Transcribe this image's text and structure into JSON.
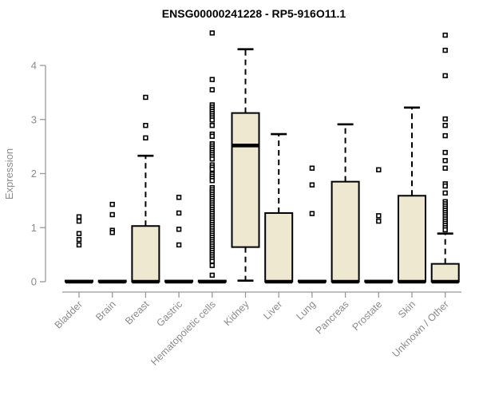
{
  "chart_data": {
    "type": "boxplot",
    "title": "ENSG00000241228 - RP5-916O11.1",
    "ylabel": "Expression",
    "xlabel": "",
    "ylim": [
      0,
      4.65
    ],
    "y_ticks": [
      0,
      1,
      2,
      3,
      4
    ],
    "grid": "off",
    "colors": {
      "box_fill": "#ede8cf",
      "box_stroke": "#000000",
      "axis": "#999999",
      "tick_text": "#8b8b8b",
      "title_text": "#000000",
      "outlier_fill": "#ffffff"
    },
    "categories": [
      "Bladder",
      "Brain",
      "Breast",
      "Gastric",
      "Hematopoietic cells",
      "Kidney",
      "Liver",
      "Lung",
      "Pancreas",
      "Prostate",
      "Skin",
      "Unknown / Other"
    ],
    "boxes": [
      {
        "label": "Bladder",
        "median": 0,
        "q1": 0,
        "q3": 0.02,
        "whisker_low": 0,
        "whisker_high": 0.02,
        "outliers": [
          1.2,
          1.12,
          0.89,
          0.78,
          0.68
        ]
      },
      {
        "label": "Brain",
        "median": 0,
        "q1": 0,
        "q3": 0.02,
        "whisker_low": 0,
        "whisker_high": 0.02,
        "outliers": [
          1.43,
          1.24,
          0.95,
          0.91
        ]
      },
      {
        "label": "Breast",
        "median": 0,
        "q1": 0,
        "q3": 1.03,
        "whisker_low": 0,
        "whisker_high": 2.33,
        "outliers": [
          3.41,
          2.89,
          2.66
        ]
      },
      {
        "label": "Gastric",
        "median": 0,
        "q1": 0,
        "q3": 0.02,
        "whisker_low": 0,
        "whisker_high": 0.02,
        "outliers": [
          1.56,
          1.27,
          0.97,
          0.68
        ]
      },
      {
        "label": "Hematopoietic cells",
        "median": 0,
        "q1": 0,
        "q3": 0.02,
        "whisker_low": 0,
        "whisker_high": 0.02,
        "outliers": [
          4.6,
          3.74,
          3.55,
          3.27,
          3.23,
          3.19,
          3.15,
          3.11,
          3.07,
          3.03,
          2.99,
          2.89,
          2.73,
          2.69,
          2.55,
          2.51,
          2.47,
          2.43,
          2.39,
          2.35,
          2.31,
          2.27,
          2.16,
          2.12,
          2.08,
          1.99,
          1.95,
          1.91,
          1.87,
          1.74,
          1.7,
          1.66,
          1.62,
          1.58,
          1.54,
          1.5,
          1.46,
          1.42,
          1.38,
          1.34,
          1.3,
          1.26,
          1.22,
          1.18,
          1.14,
          1.1,
          1.06,
          1.02,
          0.98,
          0.94,
          0.9,
          0.86,
          0.82,
          0.78,
          0.74,
          0.7,
          0.66,
          0.62,
          0.58,
          0.54,
          0.5,
          0.46,
          0.42,
          0.38,
          0.3,
          0.12
        ]
      },
      {
        "label": "Kidney",
        "median": 2.52,
        "q1": 0.64,
        "q3": 3.12,
        "whisker_low": 0.02,
        "whisker_high": 4.3,
        "outliers": []
      },
      {
        "label": "Liver",
        "median": 0,
        "q1": 0,
        "q3": 1.27,
        "whisker_low": 0,
        "whisker_high": 2.73,
        "outliers": []
      },
      {
        "label": "Lung",
        "median": 0,
        "q1": 0,
        "q3": 0.02,
        "whisker_low": 0,
        "whisker_high": 0.02,
        "outliers": [
          2.1,
          1.79,
          1.26
        ]
      },
      {
        "label": "Pancreas",
        "median": 0,
        "q1": 0,
        "q3": 1.85,
        "whisker_low": 0,
        "whisker_high": 2.91,
        "outliers": []
      },
      {
        "label": "Prostate",
        "median": 0,
        "q1": 0,
        "q3": 0.02,
        "whisker_low": 0,
        "whisker_high": 0.02,
        "outliers": [
          2.07,
          1.22,
          1.12
        ]
      },
      {
        "label": "Skin",
        "median": 0,
        "q1": 0,
        "q3": 1.59,
        "whisker_low": 0,
        "whisker_high": 3.22,
        "outliers": []
      },
      {
        "label": "Unknown / Other",
        "median": 0,
        "q1": 0,
        "q3": 0.33,
        "whisker_low": 0,
        "whisker_high": 0.89,
        "outliers": [
          4.56,
          4.28,
          3.81,
          3.01,
          2.89,
          2.7,
          2.39,
          2.24,
          2.1,
          1.81,
          1.77,
          1.64,
          1.48,
          1.44,
          1.4,
          1.36,
          1.32,
          1.28,
          1.24,
          1.2,
          1.16,
          1.12,
          1.08,
          1.04,
          1.0,
          0.96
        ]
      }
    ]
  }
}
